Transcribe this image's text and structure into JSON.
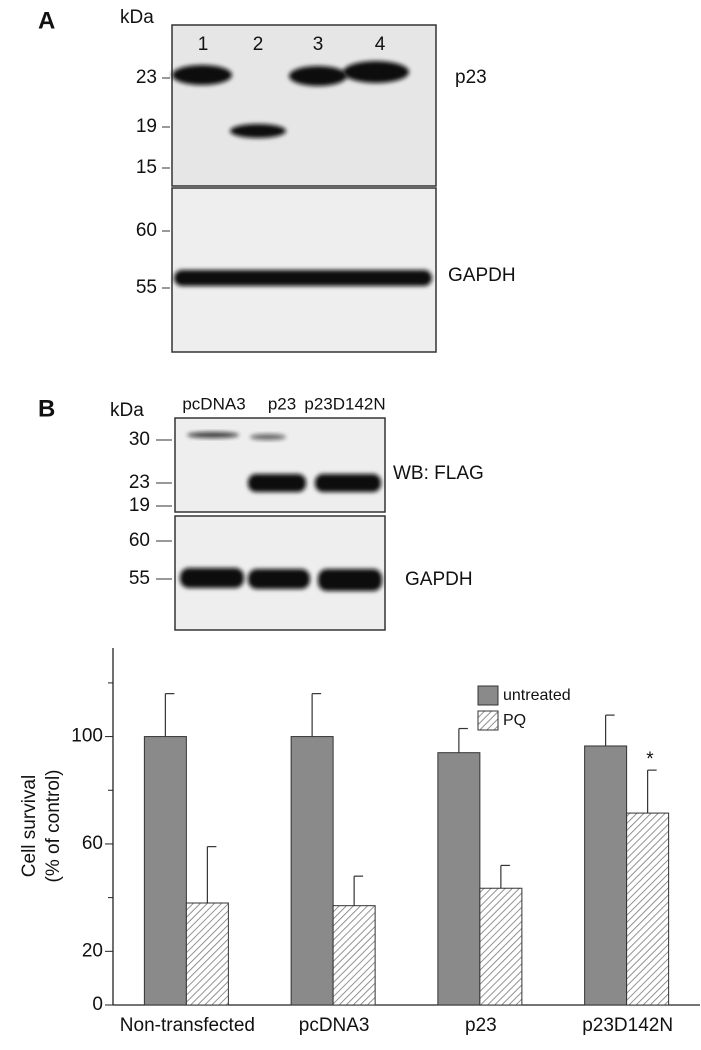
{
  "panel_a": {
    "label": "A",
    "unit": "kDa",
    "lanes": [
      "1",
      "2",
      "3",
      "4"
    ],
    "top_blot": {
      "markers": [
        23,
        19,
        15
      ],
      "target": "p23"
    },
    "bottom_blot": {
      "markers": [
        60,
        55
      ],
      "target": "GAPDH"
    }
  },
  "panel_b": {
    "label": "B",
    "unit": "kDa",
    "lanes": [
      "pcDNA3",
      "p23",
      "p23D142N"
    ],
    "top_blot": {
      "markers": [
        30,
        23,
        19
      ],
      "target": "WB: FLAG"
    },
    "bottom_blot": {
      "markers": [
        60,
        55
      ],
      "target": "GAPDH"
    }
  },
  "chart_data": {
    "type": "bar",
    "ylabel": [
      "Cell survival",
      "(% of control)"
    ],
    "categories": [
      "Non-transfected",
      "pcDNA3",
      "p23",
      "p23D142N"
    ],
    "series": [
      {
        "name": "untreated",
        "color": "#8a8a8a",
        "pattern": "solid",
        "values": [
          100,
          100,
          94,
          96.5
        ],
        "errors": [
          16,
          16,
          9,
          11.5
        ]
      },
      {
        "name": "PQ",
        "color": "#777777",
        "pattern": "hatch",
        "values": [
          38,
          37,
          43.5,
          71.5
        ],
        "errors": [
          21,
          11,
          8.5,
          16
        ]
      }
    ],
    "ylim": [
      0,
      133
    ],
    "yticks": [
      0,
      20,
      60,
      100
    ],
    "minor_yticks": [
      40,
      80,
      120
    ],
    "annotations": [
      {
        "text": "*"
      }
    ],
    "grid": false
  }
}
